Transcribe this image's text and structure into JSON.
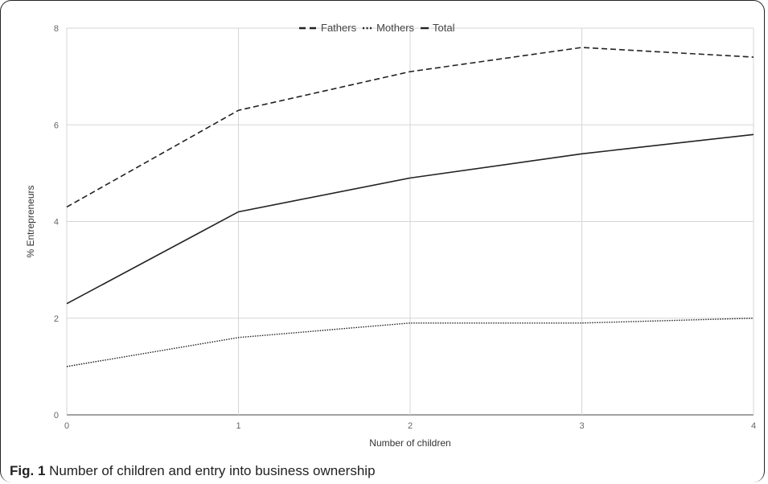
{
  "figure": {
    "label": "Fig. 1",
    "caption": "Number of children and entry into business ownership"
  },
  "chart_data": {
    "type": "line",
    "xlabel": "Number of children",
    "ylabel": "% Entrepreneurs",
    "x": [
      0,
      1,
      2,
      3,
      4
    ],
    "xlim": [
      0,
      4
    ],
    "ylim": [
      0,
      8
    ],
    "yticks": [
      0,
      2,
      4,
      6,
      8
    ],
    "grid": true,
    "legend_position": "top-center",
    "series": [
      {
        "name": "Fathers",
        "values": [
          4.3,
          6.3,
          7.1,
          7.6,
          7.4
        ],
        "style": "dashed",
        "color": "#222222"
      },
      {
        "name": "Mothers",
        "values": [
          1.0,
          1.6,
          1.9,
          1.9,
          2.0
        ],
        "style": "dotted",
        "color": "#222222"
      },
      {
        "name": "Total",
        "values": [
          2.3,
          4.2,
          4.9,
          5.4,
          5.8
        ],
        "style": "solid",
        "color": "#222222"
      }
    ]
  }
}
